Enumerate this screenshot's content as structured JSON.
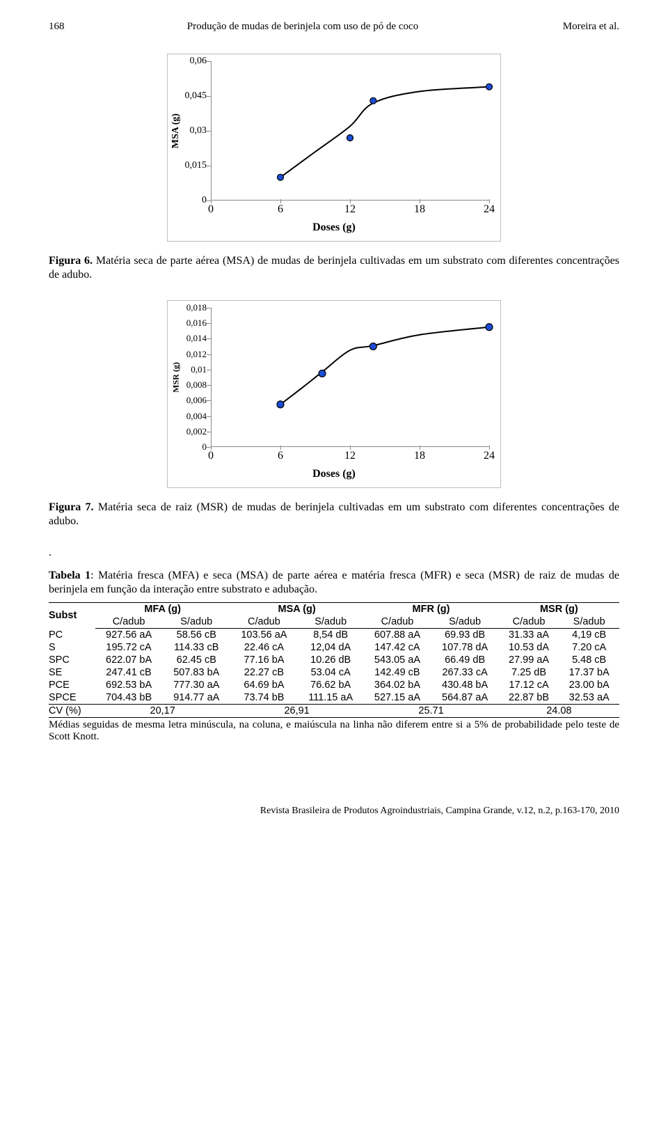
{
  "header": {
    "page_number": "168",
    "running_title": "Produção de mudas de berinjela com uso de pó de coco",
    "authors": "Moreira et al."
  },
  "figure6": {
    "type": "scatter-line",
    "ylabel": "MSA (g)",
    "xlabel": "Doses (g)",
    "yticks": [
      "0",
      "0,015",
      "0,03",
      "0,045",
      "0,06"
    ],
    "ylim": [
      0,
      0.06
    ],
    "xticks": [
      "0",
      "6",
      "12",
      "18",
      "24"
    ],
    "xlim": [
      0,
      24
    ],
    "x": [
      6,
      12,
      14,
      24
    ],
    "y": [
      0.01,
      0.027,
      0.043,
      0.049
    ],
    "line_x": [
      6,
      9,
      12,
      14,
      18,
      24
    ],
    "line_y": [
      0.01,
      0.021,
      0.032,
      0.042,
      0.047,
      0.049
    ],
    "point_color": "#1b4cd4",
    "line_color": "#000000",
    "background_color": "#ffffff",
    "border_color": "#bdbdbd",
    "tick_fontsize": 14,
    "label_fontsize": 14,
    "marker_radius": 4.5,
    "line_width": 2
  },
  "caption6": {
    "title": "Figura 6.",
    "text": " Matéria seca de parte aérea (MSA) de mudas de berinjela cultivadas em um substrato com diferentes concentrações de adubo."
  },
  "figure7": {
    "type": "scatter-line",
    "ylabel": "MSR (g)",
    "xlabel": "Doses (g)",
    "yticks": [
      "0",
      "0,002",
      "0,004",
      "0,006",
      "0,008",
      "0,01",
      "0,012",
      "0,014",
      "0,016",
      "0,018"
    ],
    "ylim": [
      0,
      0.018
    ],
    "xticks": [
      "0",
      "6",
      "12",
      "18",
      "24"
    ],
    "xlim": [
      0,
      24
    ],
    "x": [
      6,
      9.6,
      14,
      24
    ],
    "y": [
      0.0055,
      0.0095,
      0.013,
      0.0155
    ],
    "line_x": [
      6,
      8,
      9.6,
      12,
      14,
      18,
      24
    ],
    "line_y": [
      0.0055,
      0.0078,
      0.0097,
      0.0125,
      0.0131,
      0.0145,
      0.0155
    ],
    "point_color": "#1b4cd4",
    "line_color": "#000000",
    "background_color": "#ffffff",
    "border_color": "#bdbdbd",
    "tick_fontsize": 13,
    "label_fontsize": 13,
    "marker_radius": 5,
    "line_width": 2
  },
  "caption7": {
    "title": "Figura 7.",
    "text": " Matéria seca de raiz (MSR) de mudas de berinjela cultivadas em um substrato com diferentes concentrações de adubo."
  },
  "table1": {
    "caption_bold": "Tabela 1",
    "caption_text": ": Matéria fresca (MFA) e seca (MSA) de parte aérea e matéria fresca (MFR) e seca (MSR) de raiz de mudas de berinjela em função da interação entre substrato e adubação.",
    "group_headers": [
      "Subst",
      "MFA (g)",
      "MSA (g)",
      "MFR (g)",
      "MSR (g)"
    ],
    "sub_headers": [
      "",
      "C/adub",
      "S/adub",
      "C/adub",
      "S/adub",
      "C/adub",
      "S/adub",
      "C/adub",
      "S/adub"
    ],
    "rows": [
      [
        "PC",
        "927.56 aA",
        "58.56 cB",
        "103.56 aA",
        "8,54 dB",
        "607.88 aA",
        "69.93 dB",
        "31.33 aA",
        "4,19 cB"
      ],
      [
        "S",
        "195.72 cA",
        "114.33 cB",
        "22.46 cA",
        "12,04 dA",
        "147.42 cA",
        "107.78 dA",
        "10.53 dA",
        "7.20 cA"
      ],
      [
        "SPC",
        "622.07 bA",
        "62.45 cB",
        "77.16 bA",
        "10.26 dB",
        "543.05 aA",
        "66.49 dB",
        "27.99 aA",
        "5.48 cB"
      ],
      [
        "SE",
        "247.41 cB",
        "507.83 bA",
        "22.27 cB",
        "53.04 cA",
        "142.49 cB",
        "267.33 cA",
        "7.25 dB",
        "17.37 bA"
      ],
      [
        "PCE",
        "692.53 bA",
        "777.30 aA",
        "64.69 bA",
        "76.62 bA",
        "364.02 bA",
        "430.48 bA",
        "17.12 cA",
        "23.00 bA"
      ],
      [
        "SPCE",
        "704.43 bB",
        "914.77 aA",
        "73.74 bB",
        "111.15 aA",
        "527.15 aA",
        "564.87 aA",
        "22.87 bB",
        "32.53 aA"
      ]
    ],
    "cv_row": [
      "CV (%)",
      "20,17",
      "26,91",
      "25.71",
      "24.08"
    ],
    "footnote": "Médias seguidas de mesma letra minúscula, na coluna, e maiúscula na linha não diferem entre si a 5% de probabilidade pelo teste de Scott Knott.",
    "font_family": "Arial",
    "border_color": "#000000"
  },
  "footer": {
    "text": "Revista Brasileira de Produtos Agroindustriais, Campina Grande, v.12, n.2, p.163-170, 2010"
  },
  "dot": "."
}
